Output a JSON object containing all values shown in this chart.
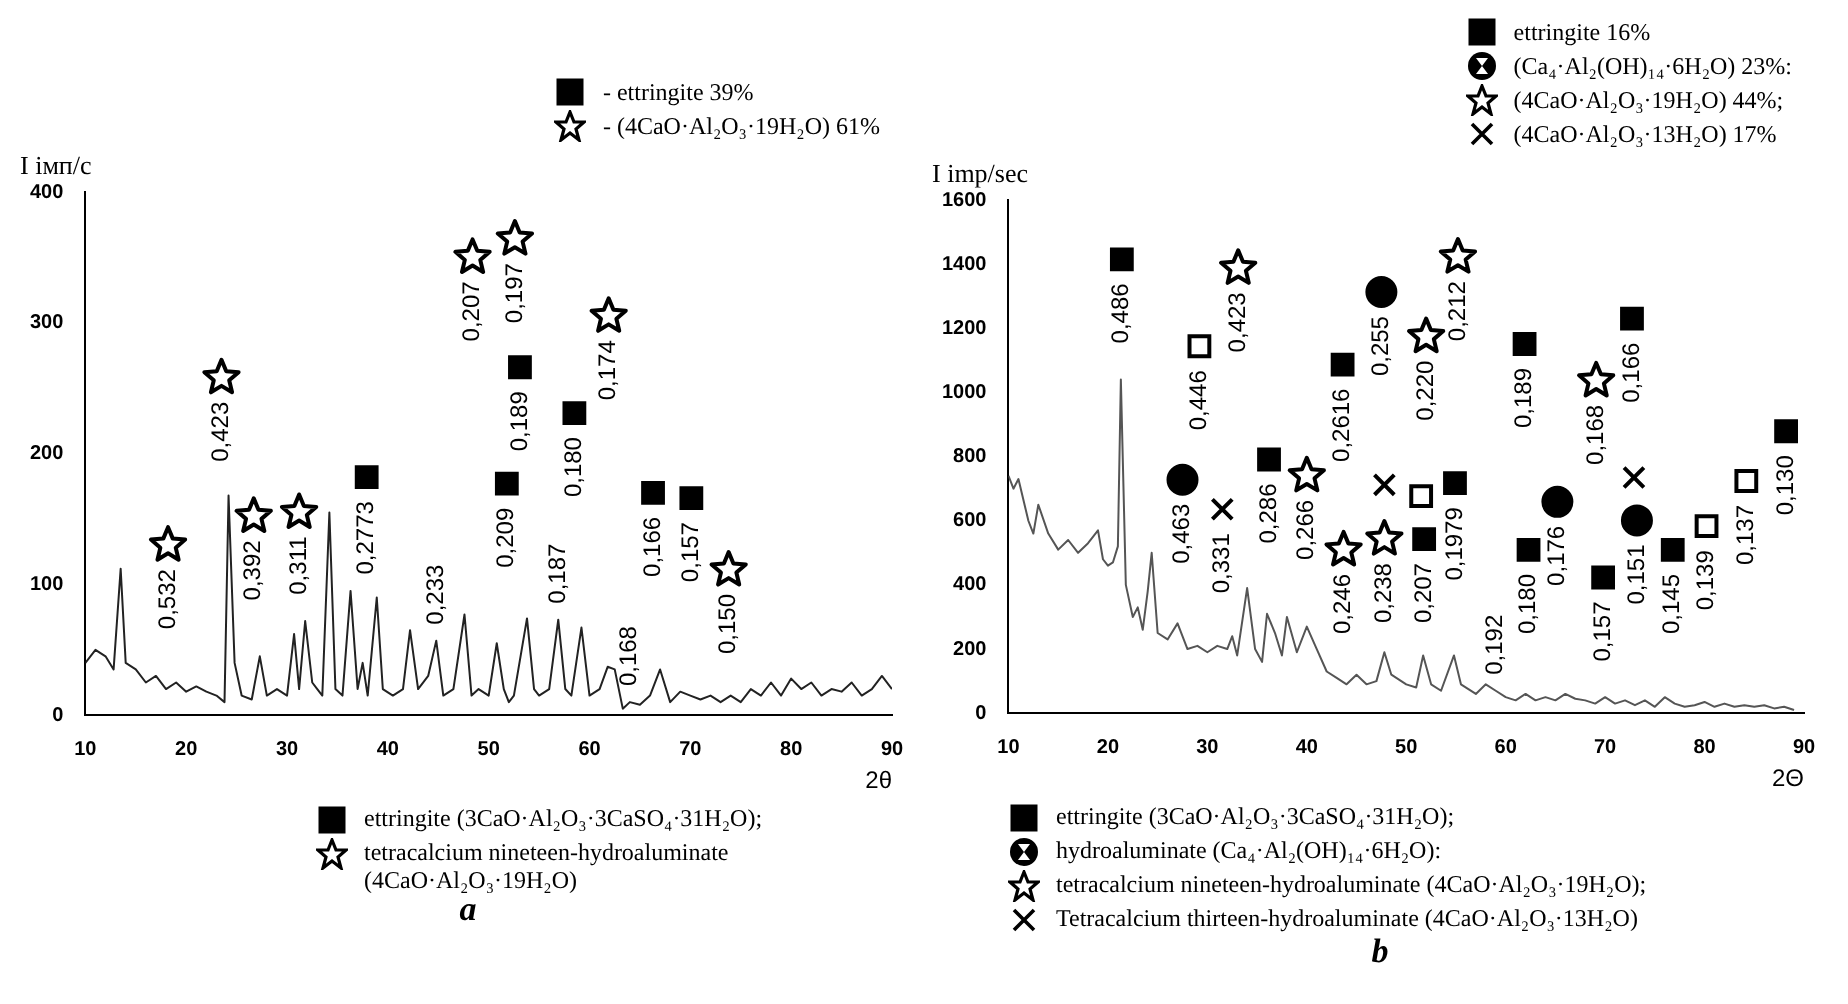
{
  "chart_data": [
    {
      "type": "line",
      "ylabel": "I імп/с",
      "xlabel": "2θ",
      "xlim": [
        10,
        90
      ],
      "xticks": [
        10,
        20,
        30,
        40,
        50,
        60,
        70,
        80,
        90
      ],
      "ylim": [
        0,
        400
      ],
      "yticks": [
        0,
        100,
        200,
        300,
        400
      ],
      "grid": false,
      "legend": "top right",
      "series": [
        {
          "color": "#222222",
          "marker": "none",
          "x": [
            10,
            11,
            12,
            12.8,
            13.5,
            14,
            15,
            16,
            17,
            18,
            19,
            20,
            21,
            22,
            23,
            23.8,
            24.2,
            24.8,
            25.5,
            26.5,
            27.3,
            28,
            29,
            30,
            30.7,
            31.2,
            31.8,
            32.5,
            33,
            33.5,
            34.2,
            34.8,
            35.5,
            36.3,
            37,
            37.5,
            38,
            38.9,
            39.5,
            40.5,
            41.5,
            42.2,
            43,
            44,
            44.8,
            45.5,
            46.5,
            47.6,
            48.3,
            49,
            50,
            50.8,
            51.5,
            52,
            52.5,
            53.8,
            54.5,
            55,
            56,
            56.9,
            57.6,
            58.2,
            59.2,
            60,
            61,
            61.8,
            62.5,
            63.3,
            64,
            65,
            66,
            67,
            68,
            69,
            70,
            71,
            72,
            73,
            74,
            75,
            76,
            77,
            78,
            79,
            80,
            81,
            82,
            83,
            84,
            85,
            86,
            87,
            88,
            89,
            90
          ],
          "values": [
            40,
            50,
            45,
            35,
            112,
            40,
            35,
            25,
            30,
            20,
            25,
            18,
            22,
            18,
            15,
            10,
            168,
            40,
            15,
            12,
            45,
            15,
            20,
            15,
            62,
            20,
            72,
            25,
            20,
            15,
            155,
            20,
            15,
            95,
            20,
            40,
            15,
            90,
            20,
            15,
            20,
            65,
            20,
            30,
            57,
            15,
            20,
            77,
            15,
            20,
            15,
            55,
            20,
            10,
            15,
            74,
            20,
            15,
            20,
            73,
            20,
            15,
            67,
            15,
            20,
            37,
            35,
            5,
            10,
            8,
            15,
            35,
            10,
            18,
            15,
            12,
            15,
            10,
            15,
            10,
            20,
            15,
            25,
            15,
            28,
            20,
            25,
            15,
            20,
            18,
            25,
            15,
            20,
            30,
            20
          ]
        },
        {
          "type": "scatter",
          "name": "- ettringite 39%",
          "marker": "square",
          "color": "#000000",
          "x": [
            37.9,
            51.8,
            53.1,
            58.5,
            66.3,
            70.1
          ],
          "values": [
            182,
            177,
            266,
            231,
            170,
            166
          ]
        },
        {
          "type": "scatter",
          "name": "- (4CaO·Al₂O₃·19H₂O) 61%",
          "marker": "star",
          "color": "#000000",
          "x": [
            18.2,
            23.5,
            26.7,
            31.2,
            48.4,
            52.6,
            61.9,
            73.8
          ],
          "values": [
            130,
            258,
            152,
            155,
            350,
            364,
            305,
            111
          ]
        }
      ],
      "annotations": [
        {
          "text": "0,532",
          "x": 18.2,
          "y": 130
        },
        {
          "text": "0,423",
          "x": 23.5,
          "y": 258
        },
        {
          "text": "0,392",
          "x": 26.7,
          "y": 152
        },
        {
          "text": "0,311",
          "x": 31.2,
          "y": 155
        },
        {
          "text": "0,2773",
          "x": 37.9,
          "y": 182
        },
        {
          "text": "0,233",
          "x": 44.8,
          "y": 57
        },
        {
          "text": "0,207",
          "x": 48.4,
          "y": 350
        },
        {
          "text": "0,197",
          "x": 52.6,
          "y": 364
        },
        {
          "text": "0,209",
          "x": 51.8,
          "y": 177
        },
        {
          "text": "0,189",
          "x": 53.1,
          "y": 266
        },
        {
          "text": "0,187",
          "x": 56.9,
          "y": 73
        },
        {
          "text": "0,180",
          "x": 58.5,
          "y": 231
        },
        {
          "text": "0,174",
          "x": 61.9,
          "y": 305
        },
        {
          "text": "0,168",
          "x": 64,
          "y": 10
        },
        {
          "text": "0,166",
          "x": 66.3,
          "y": 170
        },
        {
          "text": "0,157",
          "x": 70.1,
          "y": 166
        },
        {
          "text": "0,150",
          "x": 73.8,
          "y": 111
        },
        "ettringite (3CaO·Al₂O₃·3CaSO₄·31H₂O);",
        "tetracalcium nineteen-hydroaluminate (4CaO·Al₂O₃·19H₂O)",
        "a"
      ]
    },
    {
      "type": "line",
      "ylabel": "I imp/sec",
      "xlabel": "2Θ",
      "xlim": [
        10,
        90
      ],
      "xticks": [
        10,
        20,
        30,
        40,
        50,
        60,
        70,
        80,
        90
      ],
      "ylim": [
        0,
        1600
      ],
      "yticks": [
        0,
        200,
        400,
        600,
        800,
        1000,
        1200,
        1400,
        1600
      ],
      "grid": false,
      "legend": "top right",
      "series": [
        {
          "color": "#555555",
          "marker": "none",
          "x": [
            10,
            10.5,
            11,
            12,
            12.5,
            13,
            14,
            15,
            16,
            17,
            18,
            19,
            19.5,
            20,
            20.5,
            21,
            21.3,
            21.8,
            22.5,
            23,
            23.5,
            24,
            24.4,
            25,
            26,
            27,
            28,
            29,
            30,
            31,
            32,
            32.5,
            33,
            34,
            34.8,
            35.5,
            36,
            36.8,
            37.5,
            38,
            39,
            40,
            41,
            42,
            43,
            44,
            45,
            46,
            47,
            47.8,
            48.5,
            50,
            51,
            51.7,
            52.5,
            53.5,
            54.8,
            55.5,
            57,
            58,
            59,
            60,
            61,
            62,
            63,
            64,
            65,
            66,
            67,
            68,
            69,
            70,
            71,
            72,
            73,
            74,
            75,
            76,
            77,
            78,
            79,
            80,
            81,
            82,
            83,
            84,
            85,
            86,
            87,
            88,
            89
          ],
          "values": [
            740,
            700,
            730,
            600,
            560,
            650,
            560,
            510,
            540,
            500,
            530,
            570,
            480,
            460,
            470,
            520,
            1040,
            400,
            300,
            330,
            260,
            380,
            500,
            250,
            230,
            280,
            200,
            210,
            190,
            210,
            200,
            240,
            180,
            390,
            200,
            160,
            310,
            250,
            180,
            300,
            190,
            270,
            200,
            130,
            110,
            90,
            120,
            90,
            100,
            190,
            120,
            90,
            80,
            180,
            90,
            70,
            180,
            90,
            60,
            90,
            70,
            50,
            40,
            60,
            40,
            50,
            40,
            60,
            45,
            40,
            30,
            50,
            30,
            40,
            25,
            40,
            20,
            50,
            30,
            20,
            25,
            35,
            20,
            30,
            20,
            25,
            20,
            25,
            15,
            20,
            10
          ]
        },
        {
          "type": "scatter",
          "name": "ettringite 16%",
          "marker": "square",
          "color": "#000000",
          "x": [
            21.4,
            36.2,
            43.6,
            51.8,
            54.9,
            61.9,
            62.3,
            69.8,
            72.7,
            76.8,
            88.2
          ],
          "values": [
            1415,
            791,
            1087,
            543,
            717,
            1151,
            509,
            423,
            1230,
            509,
            879
          ]
        },
        {
          "type": "scatter",
          "name": "(Ca₄·Al₂(OH)₁₄·6H₂O) 23%:",
          "marker": "circle",
          "color": "#000000",
          "x": [
            27.5,
            47.5,
            65.2,
            73.2
          ],
          "values": [
            728,
            1313,
            659,
            601
          ]
        },
        {
          "type": "scatter",
          "name": "(4CaO·Al₂O₃·19H₂O) 44%;",
          "marker": "star",
          "color": "#000000",
          "x": [
            33.1,
            40,
            43.7,
            47.8,
            52,
            55.2,
            69.1
          ],
          "values": [
            1387,
            740,
            509,
            543,
            1174,
            1422,
            1036
          ]
        },
        {
          "type": "scatter",
          "name": "(4CaO·Al₂O₃·13H₂O) 17%",
          "marker": "cross",
          "color": "#000000",
          "x": [
            31.5,
            47.8,
            72.9
          ],
          "values": [
            636,
            712,
            735
          ]
        },
        {
          "type": "scatter",
          "marker": "square",
          "color": "#ffffff",
          "x": [
            29.2,
            51.5,
            80.2,
            84.2
          ],
          "values": [
            1144,
            677,
            583,
            724
          ]
        }
      ],
      "annotations": [
        {
          "text": "0,486",
          "x": 21.4,
          "y": 1415
        },
        {
          "text": "0,463",
          "x": 27.5,
          "y": 728
        },
        {
          "text": "0,446",
          "x": 29.2,
          "y": 1144
        },
        {
          "text": "0,331",
          "x": 31.5,
          "y": 636
        },
        {
          "text": "0,423",
          "x": 33.1,
          "y": 1387
        },
        {
          "text": "0,286",
          "x": 36.2,
          "y": 791
        },
        {
          "text": "0,266",
          "x": 40,
          "y": 740
        },
        {
          "text": "0,2616",
          "x": 43.6,
          "y": 1087
        },
        {
          "text": "0,246",
          "x": 43.7,
          "y": 509
        },
        {
          "text": "0,255",
          "x": 47.5,
          "y": 1313
        },
        {
          "text": "0,238",
          "x": 47.8,
          "y": 543
        },
        {
          "text": "0,207",
          "x": 51.8,
          "y": 543
        },
        {
          "text": "0,220",
          "x": 52,
          "y": 1174
        },
        {
          "text": "0,1979",
          "x": 54.9,
          "y": 717
        },
        {
          "text": "0,212",
          "x": 55.2,
          "y": 1422
        },
        {
          "text": "0,192",
          "x": 59,
          "y": 70
        },
        {
          "text": "0,189",
          "x": 61.9,
          "y": 1151
        },
        {
          "text": "0,180",
          "x": 62.3,
          "y": 509
        },
        {
          "text": "0,176",
          "x": 65.2,
          "y": 659
        },
        {
          "text": "0,168",
          "x": 69.1,
          "y": 1036
        },
        {
          "text": "0,157",
          "x": 69.8,
          "y": 423
        },
        {
          "text": "0,166",
          "x": 72.7,
          "y": 1230
        },
        {
          "text": "0,151",
          "x": 73.2,
          "y": 601
        },
        {
          "text": "0,145",
          "x": 76.8,
          "y": 509
        },
        {
          "text": "0,139",
          "x": 80.2,
          "y": 583
        },
        {
          "text": "0,137",
          "x": 84.2,
          "y": 724
        },
        {
          "text": "0,130",
          "x": 88.2,
          "y": 879
        },
        "ettringite (3CaO·Al₂O₃·3CaSO₄·31H₂O);",
        "hydroaluminate (Ca₄·Al₂(OH)₁₄·6H₂O):",
        "tetracalcium nineteen-hydroaluminate (4CaO·Al₂O₃·19H₂O);",
        "Tetracalcium thirteen-hydroaluminate (4CaO·Al₂O₃·13H₂O)",
        "b"
      ]
    }
  ]
}
